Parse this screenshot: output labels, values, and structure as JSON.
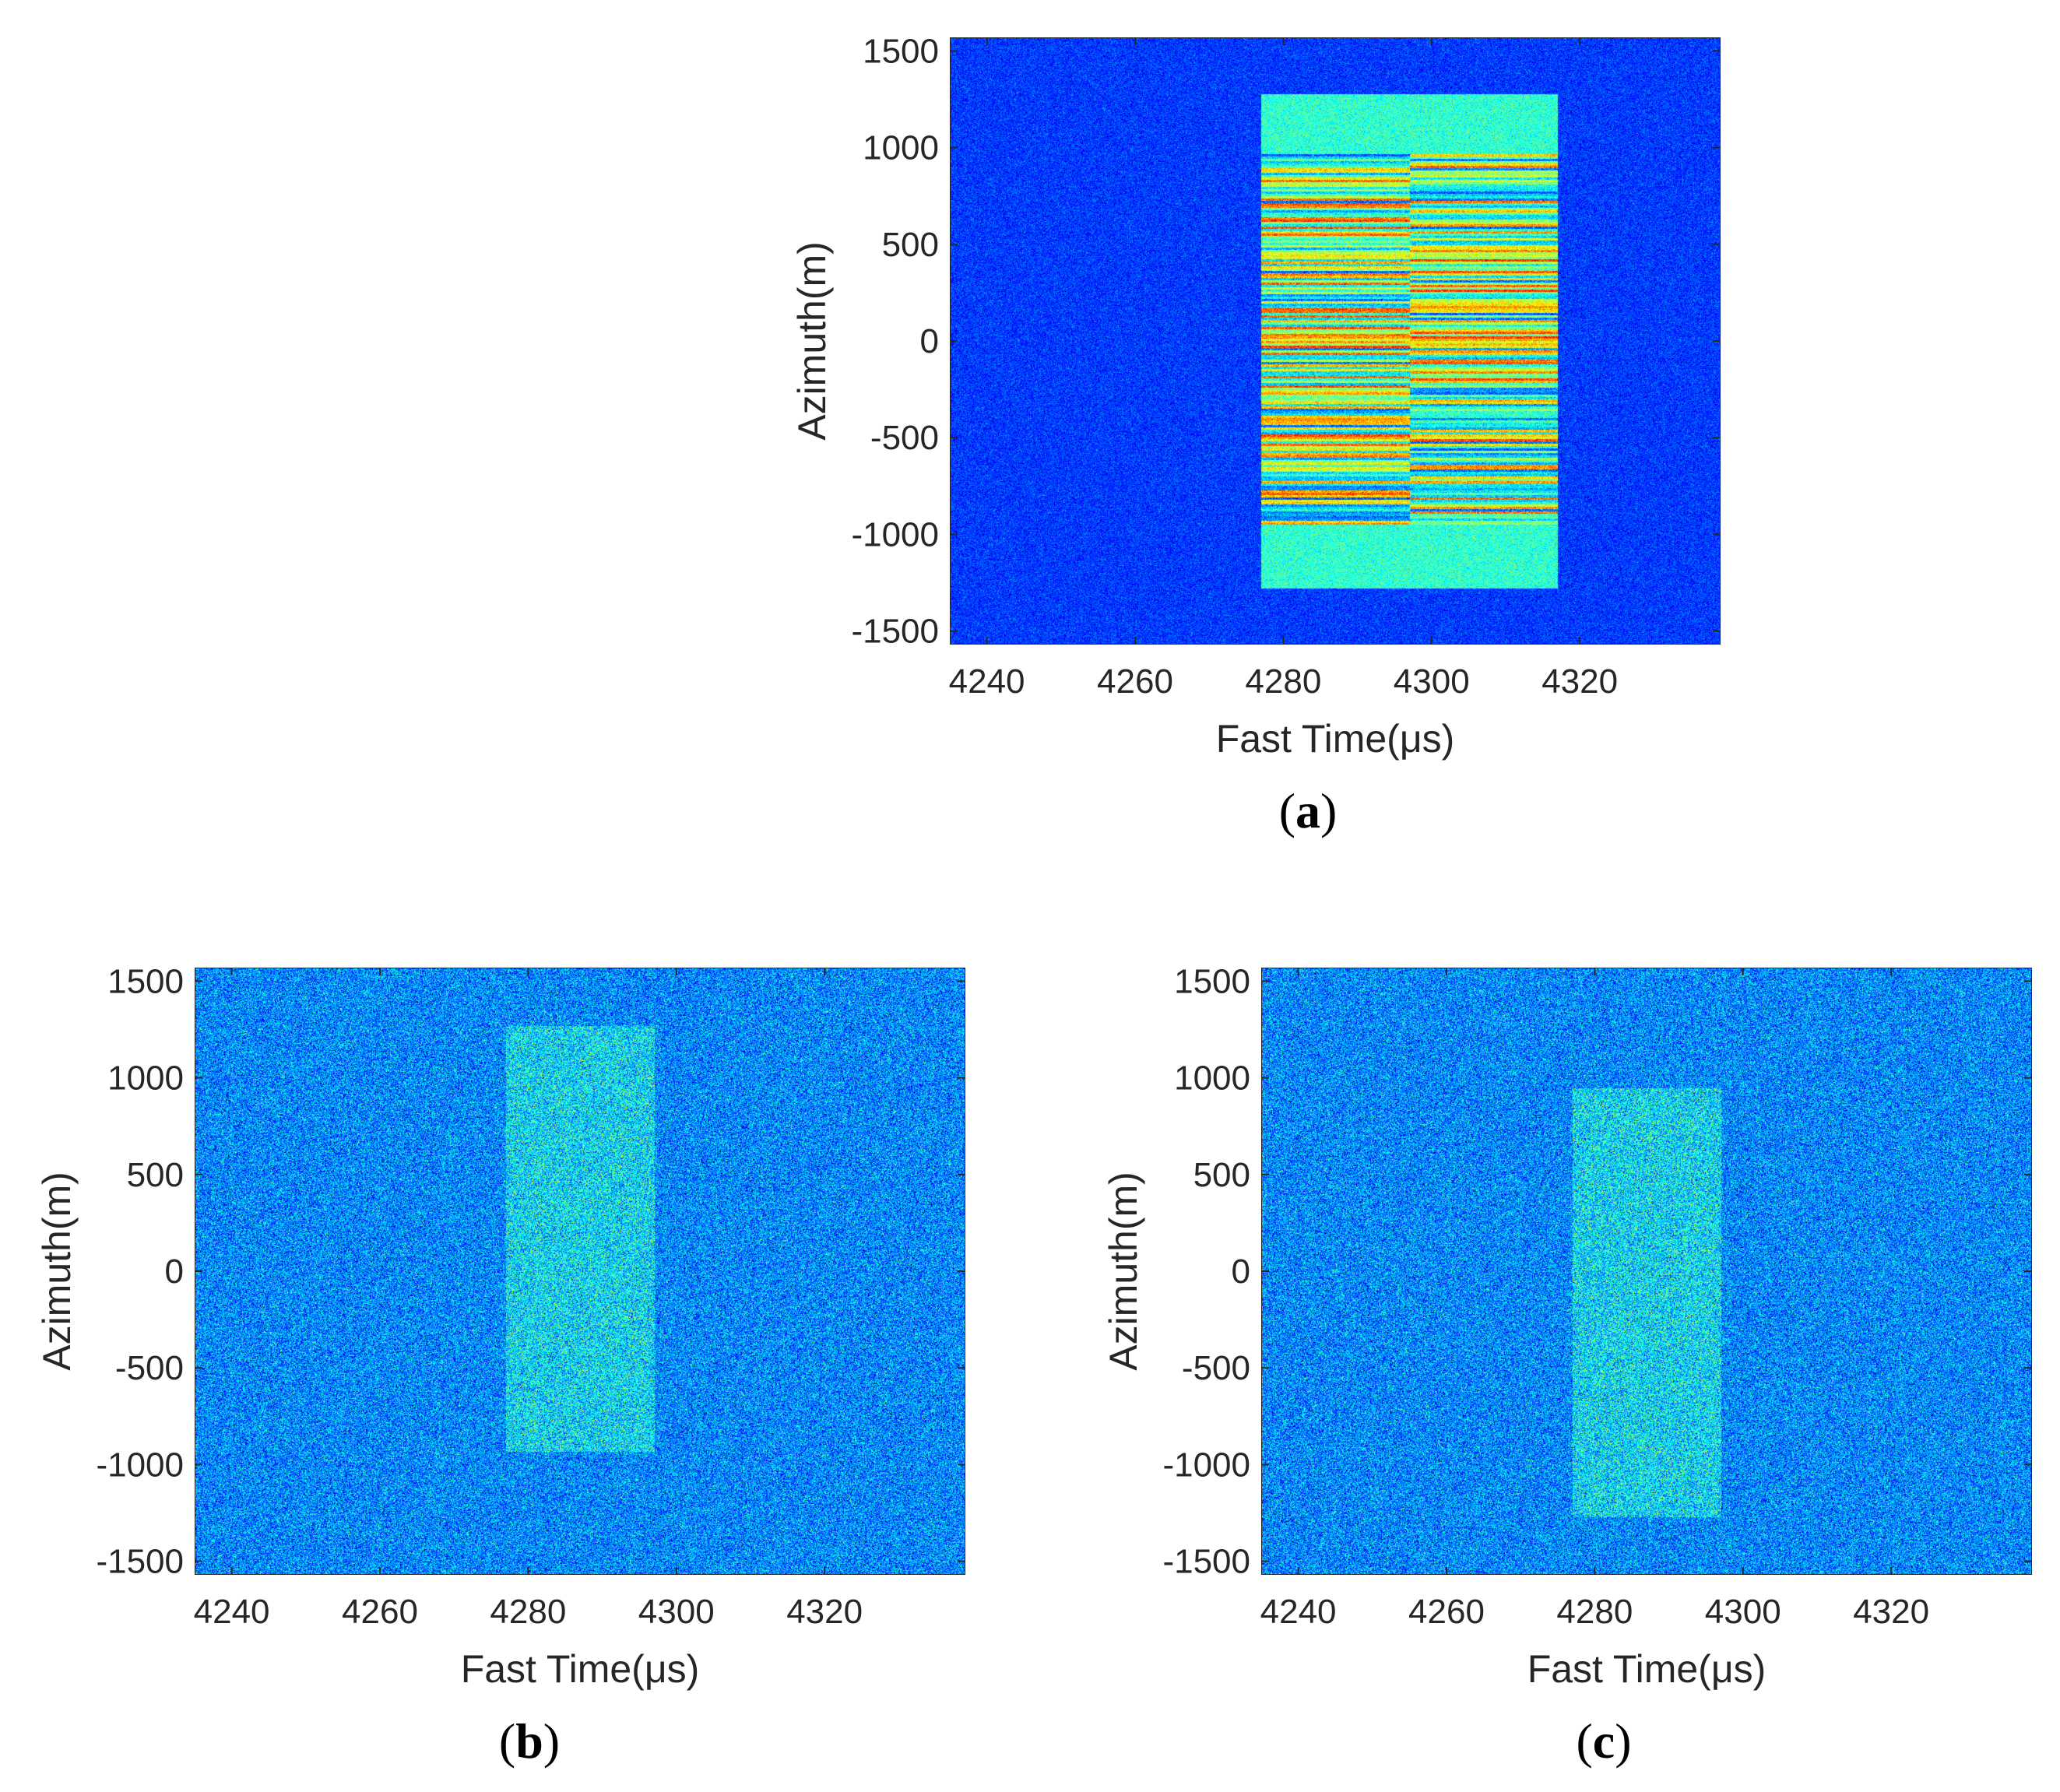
{
  "chart_data": [
    {
      "type": "heatmap",
      "panel": "a",
      "caption_label": "a",
      "title": "",
      "xlabel": "Fast Time(μs)",
      "ylabel": "Azimuth(m)",
      "xlim": [
        4235,
        4339
      ],
      "ylim": [
        -1570,
        1570
      ],
      "xticks": [
        4240,
        4260,
        4280,
        4300,
        4320
      ],
      "xtick_labels": [
        "4240",
        "4260",
        "4280",
        "4300",
        "4320"
      ],
      "yticks": [
        1500,
        1000,
        500,
        0,
        -500,
        -1000,
        -1500
      ],
      "ytick_labels": [
        "1500",
        "1000",
        "500",
        "0",
        "-500",
        "-1000",
        "-1500"
      ],
      "colormap": "jet",
      "background_level": 0.18,
      "noise": 0.05,
      "regions": [
        {
          "x_range": [
            4277,
            4317
          ],
          "y_range": [
            -1280,
            1280
          ],
          "level": 0.42,
          "striped": false
        },
        {
          "x_range": [
            4277,
            4297
          ],
          "y_range": [
            -950,
            970
          ],
          "level": 0.5,
          "striped": true
        },
        {
          "x_range": [
            4297,
            4317
          ],
          "y_range": [
            -950,
            970
          ],
          "level": 0.5,
          "striped": true
        }
      ]
    },
    {
      "type": "heatmap",
      "panel": "b",
      "caption_label": "b",
      "title": "",
      "xlabel": "Fast Time(μs)",
      "ylabel": "Azimuth(m)",
      "xlim": [
        4235,
        4339
      ],
      "ylim": [
        -1570,
        1570
      ],
      "xticks": [
        4240,
        4260,
        4280,
        4300,
        4320
      ],
      "xtick_labels": [
        "4240",
        "4260",
        "4280",
        "4300",
        "4320"
      ],
      "yticks": [
        1500,
        1000,
        500,
        0,
        -500,
        -1000,
        -1500
      ],
      "ytick_labels": [
        "1500",
        "1000",
        "500",
        "0",
        "-500",
        "-1000",
        "-1500"
      ],
      "colormap": "jet",
      "background_level": 0.26,
      "noise": 0.1,
      "regions": [
        {
          "x_range": [
            4277,
            4297
          ],
          "y_range": [
            -930,
            1270
          ],
          "level": 0.35,
          "striped": false
        }
      ]
    },
    {
      "type": "heatmap",
      "panel": "c",
      "caption_label": "c",
      "title": "",
      "xlabel": "Fast Time(μs)",
      "ylabel": "Azimuth(m)",
      "xlim": [
        4235,
        4339
      ],
      "ylim": [
        -1570,
        1570
      ],
      "xticks": [
        4240,
        4260,
        4280,
        4300,
        4320
      ],
      "xtick_labels": [
        "4240",
        "4260",
        "4280",
        "4300",
        "4320"
      ],
      "yticks": [
        1500,
        1000,
        500,
        0,
        -500,
        -1000,
        -1500
      ],
      "ytick_labels": [
        "1500",
        "1000",
        "500",
        "0",
        "-500",
        "-1000",
        "-1500"
      ],
      "colormap": "jet",
      "background_level": 0.26,
      "noise": 0.1,
      "regions": [
        {
          "x_range": [
            4277,
            4297
          ],
          "y_range": [
            -1270,
            950
          ],
          "level": 0.35,
          "striped": false
        }
      ]
    }
  ]
}
